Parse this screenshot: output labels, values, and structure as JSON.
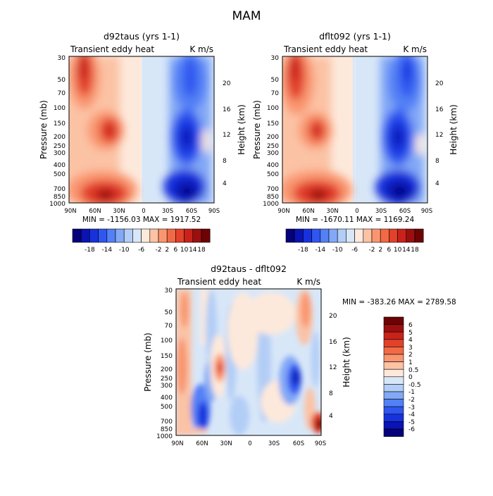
{
  "page": {
    "title": "MAM"
  },
  "colors": {
    "level_fill_18": [
      "#04017a",
      "#0a13b4",
      "#1732dd",
      "#2f56f0",
      "#5280f5",
      "#82a8f6",
      "#b2cdf6",
      "#d8e7f8",
      "#fde9db",
      "#fbc2a4",
      "#f99670",
      "#f26a45",
      "#e2412a",
      "#c9221b",
      "#9c0f0e",
      "#6d0303"
    ],
    "level_fill_diff": [
      "#04017a",
      "#0a13b4",
      "#1732dd",
      "#2f56f0",
      "#5280f5",
      "#82a8f6",
      "#b2cdf6",
      "#d8e7f8",
      "#fde9db",
      "#fbc2a4",
      "#f99670",
      "#f26a45",
      "#e2412a",
      "#c9221b",
      "#9c0f0e",
      "#6d0303"
    ]
  },
  "chart_data": [
    {
      "type": "heatmap",
      "title": "d92taus (yrs 1-1)",
      "left_label": "Transient eddy heat",
      "right_label": "K m/s",
      "ylabel": "Pressure (mb)",
      "ylabel_right": "Height (km)",
      "x_ticks": [
        "90N",
        "60N",
        "30N",
        "0",
        "30S",
        "60S",
        "90S"
      ],
      "y_ticks": [
        "30",
        "50",
        "70",
        "100",
        "150",
        "200",
        "250",
        "300",
        "400",
        "500",
        "700",
        "850",
        "1000"
      ],
      "y_ticks_right": [
        "20",
        "16",
        "12",
        "8",
        "4"
      ],
      "stats": "MIN = -1156.03   MAX = 1917.52",
      "colorbar_labels": [
        "-18",
        "-14",
        "-10",
        "-6",
        "-2",
        "2",
        "6",
        "10",
        "14",
        "18"
      ],
      "field": {
        "lat_range": [
          90,
          -90
        ],
        "pressure_range": [
          30,
          1000
        ],
        "features": [
          {
            "lat": 70,
            "p": 40,
            "value": 16,
            "kind": "positive"
          },
          {
            "lat": 55,
            "p": 200,
            "value": 14,
            "kind": "positive"
          },
          {
            "lat": 55,
            "p": 850,
            "value": 18,
            "kind": "positive"
          },
          {
            "lat": -55,
            "p": 200,
            "value": -18,
            "kind": "negative"
          },
          {
            "lat": -60,
            "p": 850,
            "value": -18,
            "kind": "negative"
          },
          {
            "lat": -70,
            "p": 40,
            "value": -14,
            "kind": "negative"
          }
        ]
      }
    },
    {
      "type": "heatmap",
      "title": "dflt092 (yrs 1-1)",
      "left_label": "Transient eddy heat",
      "right_label": "K m/s",
      "ylabel": "Pressure (mb)",
      "ylabel_right": "Height (km)",
      "x_ticks": [
        "90N",
        "60N",
        "30N",
        "0",
        "30S",
        "60S",
        "90S"
      ],
      "y_ticks": [
        "30",
        "50",
        "70",
        "100",
        "150",
        "200",
        "250",
        "300",
        "400",
        "500",
        "700",
        "850",
        "1000"
      ],
      "y_ticks_right": [
        "20",
        "16",
        "12",
        "8",
        "4"
      ],
      "stats": "MIN = -1670.11   MAX = 1169.24",
      "colorbar_labels": [
        "-18",
        "-14",
        "-10",
        "-6",
        "-2",
        "2",
        "6",
        "10",
        "14",
        "18"
      ],
      "field": {
        "lat_range": [
          90,
          -90
        ],
        "pressure_range": [
          30,
          1000
        ],
        "features": [
          {
            "lat": 70,
            "p": 40,
            "value": 16,
            "kind": "positive"
          },
          {
            "lat": 55,
            "p": 200,
            "value": 14,
            "kind": "positive"
          },
          {
            "lat": 55,
            "p": 850,
            "value": 18,
            "kind": "positive"
          },
          {
            "lat": -55,
            "p": 200,
            "value": -18,
            "kind": "negative"
          },
          {
            "lat": -60,
            "p": 850,
            "value": -18,
            "kind": "negative"
          },
          {
            "lat": -70,
            "p": 40,
            "value": -16,
            "kind": "negative"
          }
        ]
      }
    },
    {
      "type": "heatmap",
      "title": "d92taus - dflt092",
      "left_label": "Transient eddy heat",
      "right_label": "K m/s",
      "ylabel": "Pressure (mb)",
      "ylabel_right": "Height (km)",
      "x_ticks": [
        "90N",
        "60N",
        "30N",
        "0",
        "30S",
        "60S",
        "90S"
      ],
      "y_ticks": [
        "30",
        "50",
        "70",
        "100",
        "150",
        "200",
        "250",
        "300",
        "400",
        "500",
        "700",
        "850",
        "1000"
      ],
      "y_ticks_right": [
        "20",
        "16",
        "12",
        "8",
        "4"
      ],
      "stats": "MIN = -383.26   MAX = 2789.58",
      "colorbar_labels": [
        "6",
        "5",
        "4",
        "3",
        "2",
        "1",
        "0.5",
        "0",
        "-0.5",
        "-1",
        "-2",
        "-3",
        "-4",
        "-5",
        "-6"
      ],
      "field": {
        "lat_range": [
          90,
          -90
        ],
        "pressure_range": [
          30,
          1000
        ],
        "features": [
          {
            "lat": 80,
            "p": 200,
            "value": 3,
            "kind": "positive"
          },
          {
            "lat": 45,
            "p": 200,
            "value": 4,
            "kind": "positive"
          },
          {
            "lat": 60,
            "p": 600,
            "value": -3,
            "kind": "negative"
          },
          {
            "lat": -65,
            "p": 280,
            "value": -5,
            "kind": "negative"
          },
          {
            "lat": -70,
            "p": 50,
            "value": 4,
            "kind": "positive"
          },
          {
            "lat": -85,
            "p": 700,
            "value": 6,
            "kind": "positive"
          }
        ]
      }
    }
  ]
}
